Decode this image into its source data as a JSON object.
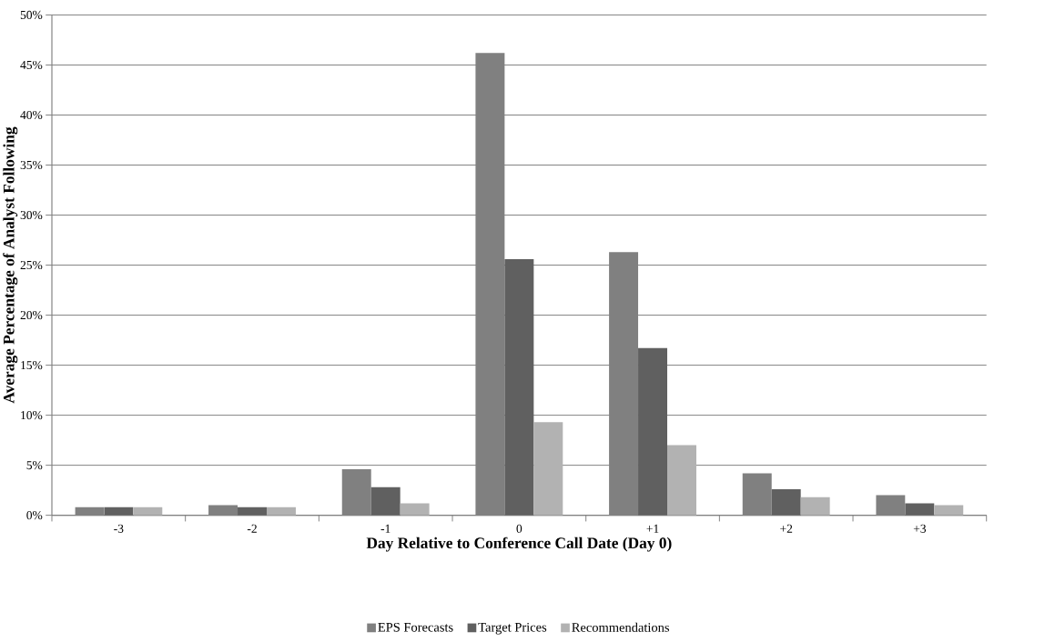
{
  "chart_data": {
    "type": "bar",
    "xlabel": "Day Relative to Conference Call Date (Day 0)",
    "ylabel": "Average Percentage of Analyst Following",
    "categories": [
      "-3",
      "-2",
      "-1",
      "0",
      "+1",
      "+2",
      "+3"
    ],
    "series": [
      {
        "name": "EPS Forecasts",
        "color": "#808080",
        "values": [
          0.8,
          1.0,
          4.6,
          46.2,
          26.3,
          4.2,
          2.0
        ]
      },
      {
        "name": "Target Prices",
        "color": "#606060",
        "values": [
          0.8,
          0.8,
          2.8,
          25.6,
          16.7,
          2.6,
          1.2
        ]
      },
      {
        "name": "Recommendations",
        "color": "#b2b2b2",
        "values": [
          0.8,
          0.8,
          1.2,
          9.3,
          7.0,
          1.8,
          1.0
        ]
      }
    ],
    "ylim": [
      0,
      50
    ],
    "yticks": [
      {
        "value": 0,
        "label": "0%"
      },
      {
        "value": 5,
        "label": "5%"
      },
      {
        "value": 10,
        "label": "10%"
      },
      {
        "value": 15,
        "label": "15%"
      },
      {
        "value": 20,
        "label": "20%"
      },
      {
        "value": 25,
        "label": "25%"
      },
      {
        "value": 30,
        "label": "30%"
      },
      {
        "value": 35,
        "label": "35%"
      },
      {
        "value": 40,
        "label": "40%"
      },
      {
        "value": 45,
        "label": "45%"
      },
      {
        "value": 50,
        "label": "50%"
      }
    ],
    "grid": "y",
    "legend": "bottom"
  }
}
